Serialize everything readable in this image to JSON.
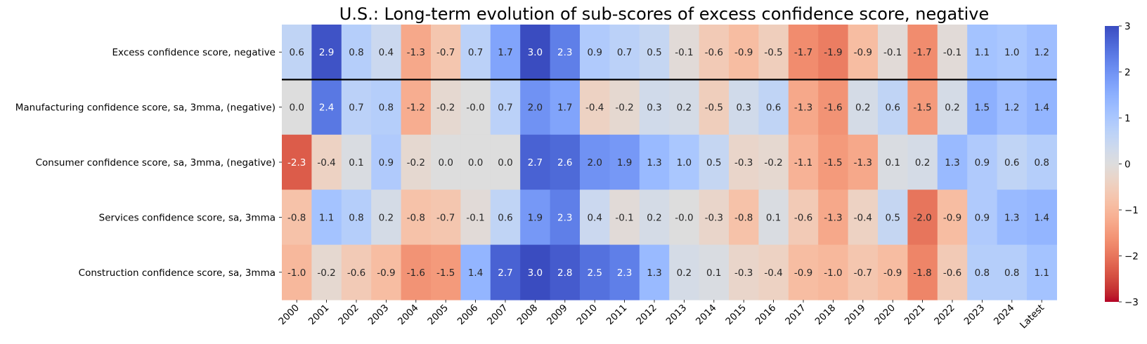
{
  "chart_data": {
    "type": "heatmap",
    "title": "U.S.: Long-term evolution of sub-scores of excess confidence score, negative",
    "columns": [
      "2000",
      "2001",
      "2002",
      "2003",
      "2004",
      "2005",
      "2006",
      "2007",
      "2008",
      "2009",
      "2010",
      "2011",
      "2012",
      "2013",
      "2014",
      "2015",
      "2016",
      "2017",
      "2018",
      "2019",
      "2020",
      "2021",
      "2022",
      "2023",
      "2024",
      "Latest"
    ],
    "rows": [
      {
        "label": "Excess confidence score, negative",
        "values": [
          0.6,
          2.9,
          0.8,
          0.4,
          -1.3,
          -0.7,
          0.7,
          1.7,
          3.0,
          2.3,
          0.9,
          0.7,
          0.5,
          -0.1,
          -0.6,
          -0.9,
          -0.5,
          -1.7,
          -1.9,
          -0.9,
          -0.1,
          -1.7,
          -0.1,
          1.1,
          1.0,
          1.2
        ]
      },
      {
        "label": "Manufacturing confidence score, sa, 3mma, (negative)",
        "values": [
          0.0,
          2.4,
          0.7,
          0.8,
          -1.2,
          -0.2,
          -0.0,
          0.7,
          2.0,
          1.7,
          -0.4,
          -0.2,
          0.3,
          0.2,
          -0.5,
          0.3,
          0.6,
          -1.3,
          -1.6,
          0.2,
          0.6,
          -1.5,
          0.2,
          1.5,
          1.2,
          1.4
        ]
      },
      {
        "label": "Consumer confidence score, sa, 3mma, (negative)",
        "values": [
          -2.3,
          -0.4,
          0.1,
          0.9,
          -0.2,
          0.0,
          0.0,
          0.0,
          2.7,
          2.6,
          2.0,
          1.9,
          1.3,
          1.0,
          0.5,
          -0.3,
          -0.2,
          -1.1,
          -1.5,
          -1.3,
          0.1,
          0.2,
          1.3,
          0.9,
          0.6,
          0.8
        ]
      },
      {
        "label": "Services confidence score, sa, 3mma",
        "values": [
          -0.8,
          1.1,
          0.8,
          0.2,
          -0.8,
          -0.7,
          -0.1,
          0.6,
          1.9,
          2.3,
          0.4,
          -0.1,
          0.2,
          -0.0,
          -0.3,
          -0.8,
          0.1,
          -0.6,
          -1.3,
          -0.4,
          0.5,
          -2.0,
          -0.9,
          0.9,
          1.3,
          1.4
        ]
      },
      {
        "label": "Construction confidence score, sa, 3mma",
        "values": [
          -1.0,
          -0.2,
          -0.6,
          -0.9,
          -1.6,
          -1.5,
          1.4,
          2.7,
          3.0,
          2.8,
          2.5,
          2.3,
          1.3,
          0.2,
          0.1,
          -0.3,
          -0.4,
          -0.9,
          -1.0,
          -0.7,
          -0.9,
          -1.8,
          -0.6,
          0.8,
          0.8,
          1.1
        ]
      }
    ],
    "colormap": "coolwarm_r",
    "vmin": -3,
    "vmax": 3,
    "colorbar_ticks": [
      "3",
      "2",
      "1",
      "0",
      "−1",
      "−2",
      "−3"
    ],
    "colorbar_tick_values": [
      3,
      2,
      1,
      0,
      -1,
      -2,
      -3
    ],
    "separator_after_row": 0,
    "grid": false
  }
}
